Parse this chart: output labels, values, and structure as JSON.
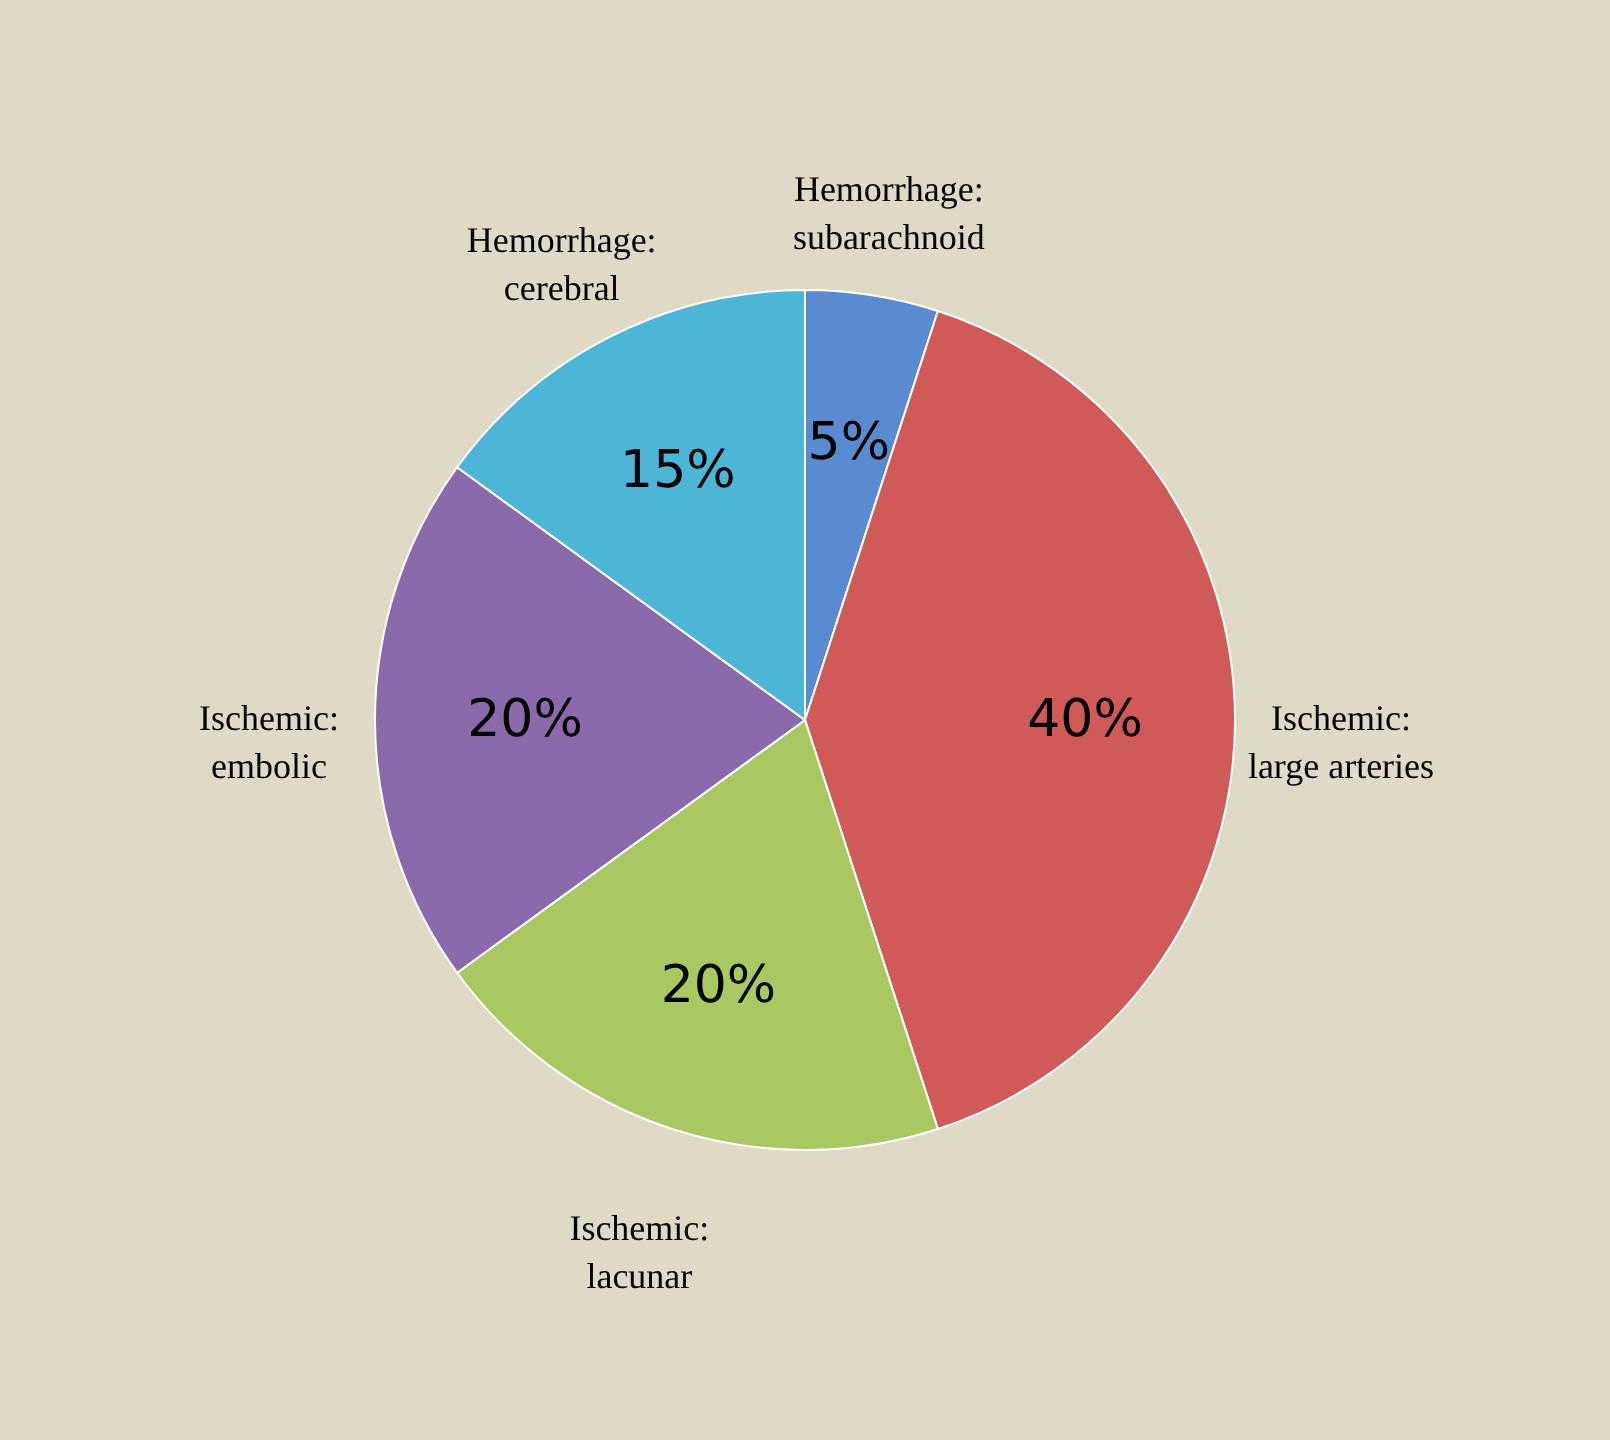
{
  "chart_data": {
    "type": "pie",
    "categories": [
      "Hemorrhage: subarachnoid",
      "Ischemic: large  arteries",
      "Ischemic: lacunar",
      "Ischemic: embolic",
      "Hemorrhage: cerebral"
    ],
    "values": [
      5,
      40,
      20,
      20,
      15
    ],
    "value_labels": [
      "5%",
      "40%",
      "20%",
      "20%",
      "15%"
    ],
    "colors": [
      "#5a8ad0",
      "#d05a58",
      "#a9c862",
      "#8a6aab",
      "#4db6d6"
    ]
  }
}
